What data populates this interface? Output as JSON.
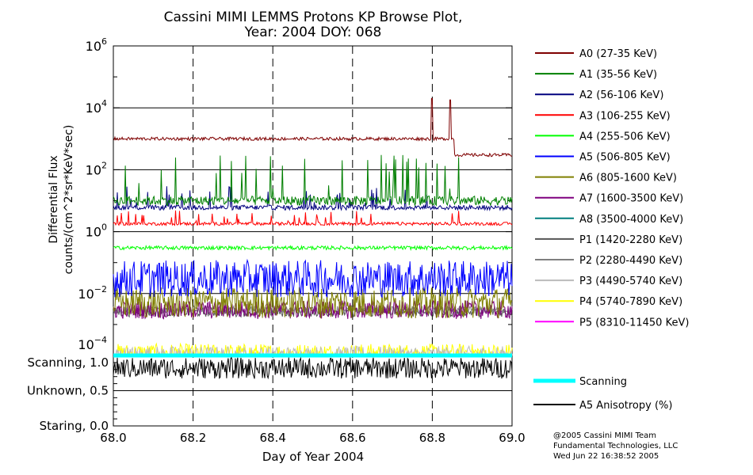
{
  "chart_data": {
    "type": "line",
    "title": "Cassini MIMI LEMMS Protons KP Browse Plot,",
    "subtitle": "Year: 2004 DOY: 068",
    "xlabel": "Day of Year 2004",
    "ylabel_line1": "Differential Flux",
    "ylabel_line2": "counts/(cm^2*sr*KeV*sec)",
    "xlim": [
      68.0,
      69.0
    ],
    "x_ticks": [
      "68.0",
      "68.2",
      "68.4",
      "68.6",
      "68.8",
      "69.0"
    ],
    "x_tick_values": [
      68.0,
      68.2,
      68.4,
      68.6,
      68.8,
      69.0
    ],
    "ylim": [
      0.0001,
      1000000
    ],
    "yscale": "log",
    "y_ticks": [
      {
        "base": "10",
        "exp": "6",
        "value": 1000000
      },
      {
        "base": "10",
        "exp": "4",
        "value": 10000
      },
      {
        "base": "10",
        "exp": "2",
        "value": 100
      },
      {
        "base": "10",
        "exp": "0",
        "value": 1
      },
      {
        "base": "10",
        "exp": "−2",
        "value": 0.01
      },
      {
        "base": "10",
        "exp": "−4",
        "value": 0.0001
      }
    ],
    "lower_panel": {
      "ylim": [
        0.0,
        1.0
      ],
      "y_ticks": [
        {
          "label": "Scanning, 1.0",
          "value": 1.0
        },
        {
          "label": "Unknown, 0.5",
          "value": 0.5
        },
        {
          "label": "Staring, 0.0",
          "value": 0.0
        }
      ]
    },
    "series": [
      {
        "name": "A0 (27-35 KeV)",
        "color": "#7f0000",
        "level": 1000,
        "spread": 0.05,
        "spikes": [
          [
            68.8,
            20000
          ],
          [
            68.845,
            18000
          ]
        ],
        "after": [
          68.855,
          300
        ]
      },
      {
        "name": "A1 (35-56 KeV)",
        "color": "#007f00",
        "level": 10,
        "spread": 0.15,
        "burst": 300
      },
      {
        "name": "A2 (56-106 KeV)",
        "color": "#00007f",
        "level": 6,
        "spread": 0.08,
        "burst": 30
      },
      {
        "name": "A3 (106-255 KeV)",
        "color": "#ff0000",
        "level": 1.8,
        "spread": 0.05,
        "burst": 5
      },
      {
        "name": "A4 (255-506 KeV)",
        "color": "#00ff00",
        "level": 0.3,
        "spread": 0.06
      },
      {
        "name": "A5 (506-805 KeV)",
        "color": "#0000ff",
        "level": 0.03,
        "spread": 0.6
      },
      {
        "name": "A6 (805-1600 KeV)",
        "color": "#7f7f00",
        "level": 0.005,
        "spread": 0.5
      },
      {
        "name": "A7 (1600-3500 KeV)",
        "color": "#7f007f",
        "level": 0.003,
        "spread": 0.3
      },
      {
        "name": "A8 (3500-4000 KeV)",
        "color": "#007f7f",
        "level": 0.0001,
        "spread": 0.0
      },
      {
        "name": "P1 (1420-2280 KeV)",
        "color": "#555555",
        "level": 0.0025,
        "spread": 0.15
      },
      {
        "name": "P2 (2280-4490 KeV)",
        "color": "#7f7f7f",
        "level": 0.003,
        "spread": 0.12
      },
      {
        "name": "P3 (4490-5740 KeV)",
        "color": "#bbbbbb",
        "level": 0.0001,
        "spread": 0.3
      },
      {
        "name": "P4 (5740-7890 KeV)",
        "color": "#ffff00",
        "level": 0.00012,
        "spread": 0.3
      },
      {
        "name": "P5 (8310-11450 KeV)",
        "color": "#ff00ff",
        "level": 0.0001,
        "spread": 0.0
      }
    ],
    "lower_series": [
      {
        "name": "Scanning",
        "color": "#00ffff",
        "level": 1.0
      },
      {
        "name": "A5 Anisotropy (%)",
        "color": "#000000",
        "level": 0.82
      }
    ]
  },
  "footer": {
    "line1": "@2005 Cassini MIMI Team",
    "line2": "Fundamental Technologies, LLC",
    "line3": "Wed Jun 22 16:38:52 2005"
  }
}
